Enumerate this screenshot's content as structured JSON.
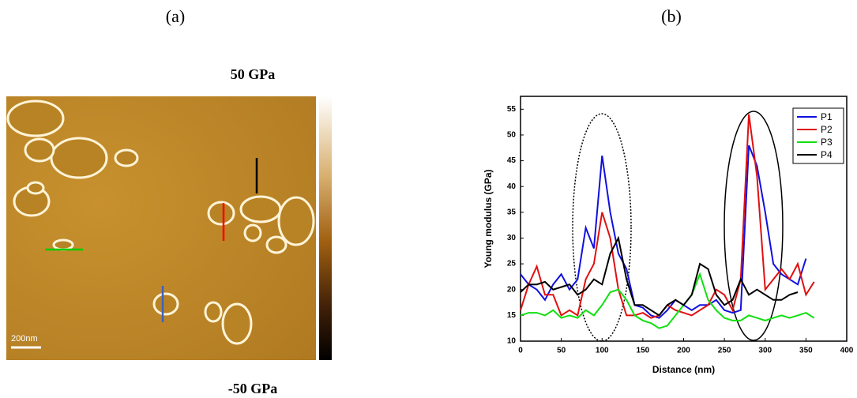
{
  "image_panel": {
    "label": "(a)",
    "scale_max": "50 GPa",
    "scale_min": "-50 GPa",
    "scale_bar": "200nm"
  },
  "chart_data": {
    "type": "line",
    "panel_label": "(b)",
    "x_label": "Distance (nm)",
    "y_label": "Young modulus (GPa)",
    "x": [
      0,
      10,
      20,
      30,
      40,
      50,
      60,
      70,
      80,
      90,
      100,
      110,
      120,
      130,
      140,
      150,
      160,
      170,
      180,
      190,
      200,
      210,
      220,
      230,
      240,
      250,
      260,
      270,
      280,
      290,
      300,
      310,
      320,
      330,
      340,
      350,
      360
    ],
    "series": [
      {
        "name": "P1",
        "color": "#1010e0",
        "values": [
          23,
          21,
          20,
          18,
          21,
          23,
          20,
          22,
          32,
          28,
          46,
          35,
          27,
          24,
          17,
          16.5,
          15,
          14.5,
          16,
          18,
          17,
          16,
          17,
          17,
          18,
          16,
          15.5,
          16,
          48,
          44,
          35,
          25,
          23,
          22,
          21,
          26,
          null
        ]
      },
      {
        "name": "P2",
        "color": "#e01010",
        "values": [
          16,
          21,
          24.5,
          19,
          19,
          15,
          16,
          15,
          22,
          25,
          35,
          30,
          20,
          15,
          15,
          15.5,
          14.5,
          15,
          17,
          16,
          15.5,
          15,
          16,
          17,
          20,
          19,
          16,
          22,
          54,
          42,
          20,
          22,
          24,
          22,
          25,
          19,
          21.5
        ]
      },
      {
        "name": "P3",
        "color": "#10e010",
        "values": [
          15,
          15.5,
          15.5,
          15,
          16,
          14.5,
          15,
          14.5,
          16,
          15,
          17,
          19.5,
          20,
          18,
          15,
          14,
          13.5,
          12.5,
          13,
          15,
          17,
          19,
          23,
          18,
          16,
          14.5,
          14,
          14,
          15,
          14.5,
          14,
          14.5,
          15,
          14.5,
          15,
          15.5,
          14.5
        ]
      },
      {
        "name": "P4",
        "color": "#000000",
        "values": [
          19.5,
          21,
          21,
          21.5,
          20,
          20.5,
          21,
          19,
          20,
          22,
          21,
          27,
          30,
          22,
          17,
          17,
          16,
          15,
          17,
          18,
          17,
          19,
          25,
          24,
          19,
          17,
          18,
          22,
          19,
          20,
          19,
          18,
          18,
          19,
          19.5,
          null,
          null
        ]
      }
    ],
    "xlim": [
      0,
      400
    ],
    "xticks": [
      0,
      50,
      100,
      150,
      200,
      250,
      300,
      350,
      400
    ],
    "ylim": [
      10,
      57.5
    ],
    "yticks": [
      10,
      15,
      20,
      25,
      30,
      35,
      40,
      45,
      50,
      55
    ],
    "legend": "top-right"
  }
}
